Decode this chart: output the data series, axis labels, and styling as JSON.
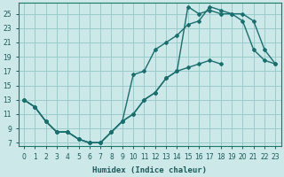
{
  "xlabel": "Humidex (Indice chaleur)",
  "bg_color": "#cce8e8",
  "grid_color": "#99cccc",
  "line_color": "#1a6e6e",
  "xlim": [
    -0.5,
    23.5
  ],
  "ylim": [
    6.5,
    26.5
  ],
  "xticks": [
    0,
    1,
    2,
    3,
    4,
    5,
    6,
    7,
    8,
    9,
    10,
    11,
    12,
    13,
    14,
    15,
    16,
    17,
    18,
    19,
    20,
    21,
    22,
    23
  ],
  "yticks": [
    7,
    9,
    11,
    13,
    15,
    17,
    19,
    21,
    23,
    25
  ],
  "line1_x": [
    0,
    1,
    2,
    3,
    4,
    5,
    6,
    7,
    8,
    9,
    10,
    11,
    12,
    13,
    14,
    15,
    16,
    17,
    18
  ],
  "line1_y": [
    13,
    12,
    10,
    8.5,
    8.5,
    7.5,
    7,
    7,
    8.5,
    10,
    11,
    13,
    14,
    16,
    17,
    17.5,
    18,
    18.5,
    18
  ],
  "line2_x": [
    0,
    1,
    2,
    3,
    4,
    5,
    6,
    7,
    8,
    9,
    10,
    11,
    12,
    13,
    14,
    15,
    16,
    17,
    18,
    19,
    20,
    21,
    22,
    23
  ],
  "line2_y": [
    13,
    12,
    10,
    8.5,
    8.5,
    7.5,
    7,
    7,
    8.5,
    10,
    11,
    13,
    14,
    16,
    17,
    26,
    25,
    25.5,
    25,
    25,
    24,
    20,
    18.5,
    18
  ],
  "line3_x": [
    0,
    1,
    2,
    3,
    4,
    5,
    6,
    7,
    8,
    9,
    10,
    11,
    12,
    13,
    14,
    15,
    16,
    17,
    18,
    19,
    20,
    21,
    22,
    23
  ],
  "line3_y": [
    13,
    12,
    10,
    8.5,
    8.5,
    7.5,
    7,
    7,
    8.5,
    10,
    16.5,
    17,
    20,
    21,
    22,
    23.5,
    24,
    26,
    25.5,
    25,
    25,
    24,
    20,
    18
  ]
}
